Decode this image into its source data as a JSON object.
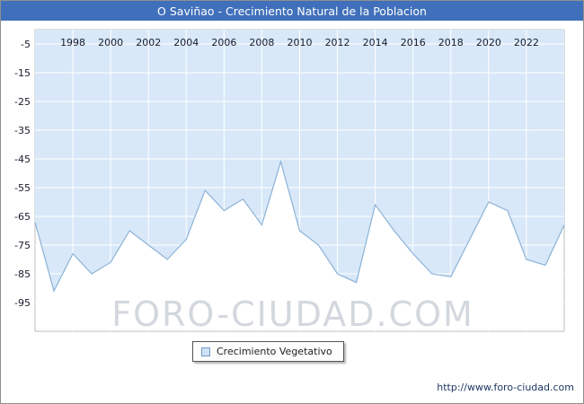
{
  "header": {
    "title": "O Saviñao - Crecimiento Natural de la Poblacion",
    "bg_color": "#4070bb",
    "fg_color": "#ffffff"
  },
  "watermark": "FORO-CIUDAD.COM",
  "legend": {
    "label": "Crecimiento Vegetativo"
  },
  "footer": {
    "url": "http://www.foro-ciudad.com"
  },
  "chart_data": {
    "type": "area",
    "title": "O Saviñao - Crecimiento Natural de la Poblacion",
    "x": [
      1996,
      1997,
      1998,
      1999,
      2000,
      2001,
      2002,
      2003,
      2004,
      2005,
      2006,
      2007,
      2008,
      2009,
      2010,
      2011,
      2012,
      2013,
      2014,
      2015,
      2016,
      2017,
      2018,
      2019,
      2020,
      2021,
      2022,
      2023,
      2024
    ],
    "series": [
      {
        "name": "Crecimiento Vegetativo",
        "values": [
          -67,
          -91,
          -78,
          -85,
          -81,
          -70,
          -75,
          -80,
          -73,
          -56,
          -63,
          -59,
          -68,
          -46,
          -70,
          -75,
          -85,
          -88,
          -61,
          -70,
          -78,
          -85,
          -86,
          -73,
          -60,
          -63,
          -80,
          -82,
          -68
        ]
      }
    ],
    "xticks": [
      1998,
      2000,
      2002,
      2004,
      2006,
      2008,
      2010,
      2012,
      2014,
      2016,
      2018,
      2020,
      2022
    ],
    "yticks": [
      -5,
      -15,
      -25,
      -35,
      -45,
      -55,
      -65,
      -75,
      -85,
      -95
    ],
    "ylim": [
      0,
      -105
    ],
    "grid": true,
    "legend_position": "bottom",
    "plot_bg": "#ffffff",
    "fill_color": "#d8e8f8",
    "line_color": "#8cb2d6",
    "grid_color": "#ffffff",
    "tick_color": "#1a1a2e"
  }
}
